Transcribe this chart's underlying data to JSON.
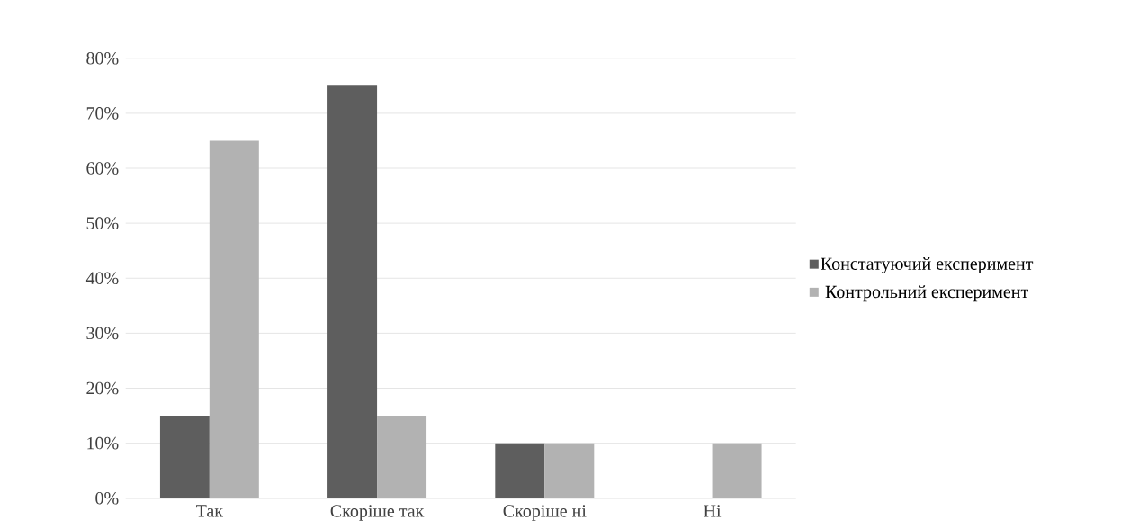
{
  "chart_data": {
    "type": "bar",
    "categories": [
      "Так",
      "Скоріше так",
      "Скоріше ні",
      "Ні"
    ],
    "series": [
      {
        "name": "Констатуючий експеримент",
        "color": "#5e5e5e",
        "values": [
          15,
          75,
          10,
          0
        ]
      },
      {
        "name": "Контрольний експеримент",
        "color": "#b2b2b2",
        "values": [
          65,
          15,
          10,
          10
        ]
      }
    ],
    "ylim": [
      0,
      80
    ],
    "yticks": [
      {
        "value": 0,
        "label": "0%"
      },
      {
        "value": 10,
        "label": "10%"
      },
      {
        "value": 20,
        "label": "20%"
      },
      {
        "value": 30,
        "label": "30%"
      },
      {
        "value": 40,
        "label": "40%"
      },
      {
        "value": 50,
        "label": "50%"
      },
      {
        "value": 60,
        "label": "60%"
      },
      {
        "value": 70,
        "label": "70%"
      },
      {
        "value": 80,
        "label": "80%"
      }
    ],
    "grid": "y",
    "legend": "right"
  }
}
